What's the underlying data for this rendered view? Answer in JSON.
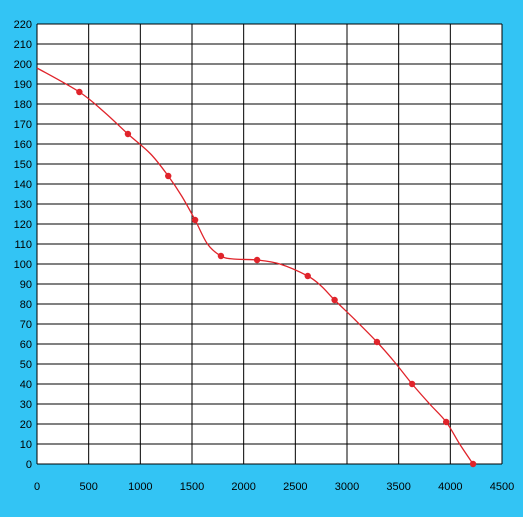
{
  "chart_data": {
    "type": "line",
    "title": "",
    "xlabel": "",
    "ylabel": "",
    "xlim": [
      0,
      4500
    ],
    "ylim": [
      0,
      220
    ],
    "grid": true,
    "x_ticks": [
      0,
      500,
      1000,
      1500,
      2000,
      2500,
      3000,
      3500,
      4000,
      4500
    ],
    "y_ticks": [
      0,
      10,
      20,
      30,
      40,
      50,
      60,
      70,
      80,
      90,
      100,
      110,
      120,
      130,
      140,
      150,
      160,
      170,
      180,
      190,
      200,
      210,
      220
    ],
    "series": [
      {
        "name": "",
        "color": "#e0242b",
        "markers": true,
        "points": [
          {
            "x": 410,
            "y": 186
          },
          {
            "x": 880,
            "y": 165
          },
          {
            "x": 1270,
            "y": 144
          },
          {
            "x": 1530,
            "y": 122
          },
          {
            "x": 1780,
            "y": 104
          },
          {
            "x": 2130,
            "y": 102
          },
          {
            "x": 2620,
            "y": 94
          },
          {
            "x": 2880,
            "y": 82
          },
          {
            "x": 3290,
            "y": 61
          },
          {
            "x": 3630,
            "y": 40
          },
          {
            "x": 3960,
            "y": 21
          },
          {
            "x": 4220,
            "y": 0
          }
        ],
        "line": [
          {
            "x": 0,
            "y": 198
          },
          {
            "x": 410,
            "y": 186
          },
          {
            "x": 650,
            "y": 176
          },
          {
            "x": 880,
            "y": 165
          },
          {
            "x": 1100,
            "y": 155
          },
          {
            "x": 1270,
            "y": 144
          },
          {
            "x": 1400,
            "y": 134
          },
          {
            "x": 1530,
            "y": 122
          },
          {
            "x": 1650,
            "y": 110
          },
          {
            "x": 1780,
            "y": 104
          },
          {
            "x": 1900,
            "y": 102.5
          },
          {
            "x": 2130,
            "y": 102
          },
          {
            "x": 2350,
            "y": 100
          },
          {
            "x": 2620,
            "y": 94
          },
          {
            "x": 2750,
            "y": 89
          },
          {
            "x": 2880,
            "y": 82
          },
          {
            "x": 3080,
            "y": 72
          },
          {
            "x": 3290,
            "y": 61
          },
          {
            "x": 3460,
            "y": 51
          },
          {
            "x": 3630,
            "y": 40
          },
          {
            "x": 3800,
            "y": 30
          },
          {
            "x": 3960,
            "y": 21
          },
          {
            "x": 4090,
            "y": 10
          },
          {
            "x": 4220,
            "y": 0
          }
        ]
      }
    ]
  }
}
